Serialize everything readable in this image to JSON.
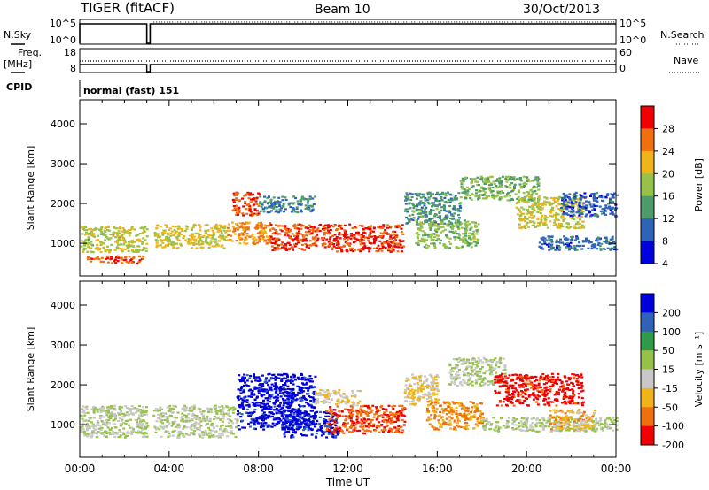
{
  "header": {
    "radar": "TIGER (fitACF)",
    "beam": "Beam 10",
    "date": "30/Oct/2013"
  },
  "top_panels": {
    "nsky_label": "N.Sky",
    "nsearch_label": "N.Search",
    "freq_label_1": "Freq.",
    "freq_label_2": "[MHz]",
    "nave_label": "Nave",
    "cpid_label": "CPID",
    "cpid_text": "normal (fast) 151",
    "nsky_ticks": [
      "10^5",
      "10^0"
    ],
    "freq_ticks": [
      "18",
      "8"
    ],
    "nave_ticks": [
      "60",
      "0"
    ]
  },
  "x_axis": {
    "label": "Time UT",
    "ticks": [
      "00:00",
      "04:00",
      "08:00",
      "12:00",
      "16:00",
      "20:00",
      "00:00"
    ]
  },
  "power_colorbar": {
    "label": "Power [dB]",
    "ticks": [
      "28",
      "24",
      "20",
      "16",
      "12",
      "8",
      "4"
    ]
  },
  "velocity_colorbar": {
    "label": "Velocity [m s⁻¹]",
    "ticks": [
      "200",
      "100",
      "50",
      "15",
      "-15",
      "-50",
      "-100",
      "-200"
    ]
  },
  "chart_data": [
    {
      "type": "heatmap",
      "panel": "power",
      "ylabel": "Slant Range [km]",
      "xlabel": "Time UT",
      "xlim": [
        0,
        24
      ],
      "ylim": [
        180,
        4600
      ],
      "yticks": [
        1000,
        2000,
        3000,
        4000
      ],
      "colorscale": {
        "min": 0,
        "max": 30,
        "colors": [
          "#0000dd",
          "#2f63b8",
          "#4f9a6a",
          "#96c24a",
          "#f0b41a",
          "#f07010",
          "#f00000"
        ]
      },
      "data_gap": [
        3.0,
        3.25
      ],
      "echo_regions": [
        {
          "t": [
            0.0,
            3.0
          ],
          "r": [
            800,
            1450
          ],
          "level": 16
        },
        {
          "t": [
            0.3,
            2.8
          ],
          "r": [
            520,
            700
          ],
          "level": 25
        },
        {
          "t": [
            3.3,
            6.5
          ],
          "r": [
            900,
            1500
          ],
          "level": 18
        },
        {
          "t": [
            6.5,
            8.5
          ],
          "r": [
            1000,
            1550
          ],
          "level": 22
        },
        {
          "t": [
            6.8,
            8.0
          ],
          "r": [
            1700,
            2300
          ],
          "level": 26
        },
        {
          "t": [
            8.5,
            11.0
          ],
          "r": [
            850,
            1500
          ],
          "level": 25
        },
        {
          "t": [
            11.0,
            14.5
          ],
          "r": [
            800,
            1500
          ],
          "level": 27
        },
        {
          "t": [
            8.0,
            10.5
          ],
          "r": [
            1800,
            2200
          ],
          "level": 9
        },
        {
          "t": [
            14.5,
            17.0
          ],
          "r": [
            1500,
            2300
          ],
          "level": 10
        },
        {
          "t": [
            15.0,
            17.8
          ],
          "r": [
            900,
            1600
          ],
          "level": 14
        },
        {
          "t": [
            17.0,
            20.5
          ],
          "r": [
            2100,
            2700
          ],
          "level": 13
        },
        {
          "t": [
            19.5,
            22.5
          ],
          "r": [
            1400,
            2200
          ],
          "level": 17
        },
        {
          "t": [
            20.5,
            24.0
          ],
          "r": [
            850,
            1200
          ],
          "level": 7
        },
        {
          "t": [
            21.5,
            24.0
          ],
          "r": [
            1700,
            2300
          ],
          "level": 6
        }
      ]
    },
    {
      "type": "heatmap",
      "panel": "velocity",
      "ylabel": "Slant Range [km]",
      "xlabel": "Time UT",
      "xlim": [
        0,
        24
      ],
      "ylim": [
        180,
        4600
      ],
      "yticks": [
        1000,
        2000,
        3000,
        4000
      ],
      "colorscale": {
        "min": -250,
        "max": 250,
        "colors": [
          "#f00000",
          "#f07010",
          "#f0b41a",
          "#c8c8c8",
          "#96c24a",
          "#2f9a4a",
          "#2f63b8",
          "#0000dd"
        ]
      },
      "data_gap": [
        3.0,
        3.25
      ],
      "echo_regions": [
        {
          "t": [
            0.0,
            7.0
          ],
          "r": [
            700,
            1500
          ],
          "level": 0
        },
        {
          "t": [
            7.0,
            10.5
          ],
          "r": [
            900,
            2300
          ],
          "level": 230
        },
        {
          "t": [
            9.0,
            11.5
          ],
          "r": [
            700,
            1400
          ],
          "level": 210
        },
        {
          "t": [
            11.0,
            14.5
          ],
          "r": [
            800,
            1500
          ],
          "level": -180
        },
        {
          "t": [
            10.5,
            12.5
          ],
          "r": [
            1500,
            1900
          ],
          "level": -60
        },
        {
          "t": [
            14.5,
            16.0
          ],
          "r": [
            1500,
            2300
          ],
          "level": -70
        },
        {
          "t": [
            15.5,
            18.0
          ],
          "r": [
            900,
            1600
          ],
          "level": -130
        },
        {
          "t": [
            16.5,
            19.0
          ],
          "r": [
            2000,
            2700
          ],
          "level": 0
        },
        {
          "t": [
            18.5,
            22.5
          ],
          "r": [
            1500,
            2300
          ],
          "level": -220
        },
        {
          "t": [
            18.0,
            24.0
          ],
          "r": [
            850,
            1200
          ],
          "level": 0
        },
        {
          "t": [
            21.0,
            23.0
          ],
          "r": [
            900,
            1400
          ],
          "level": -90
        }
      ]
    }
  ]
}
